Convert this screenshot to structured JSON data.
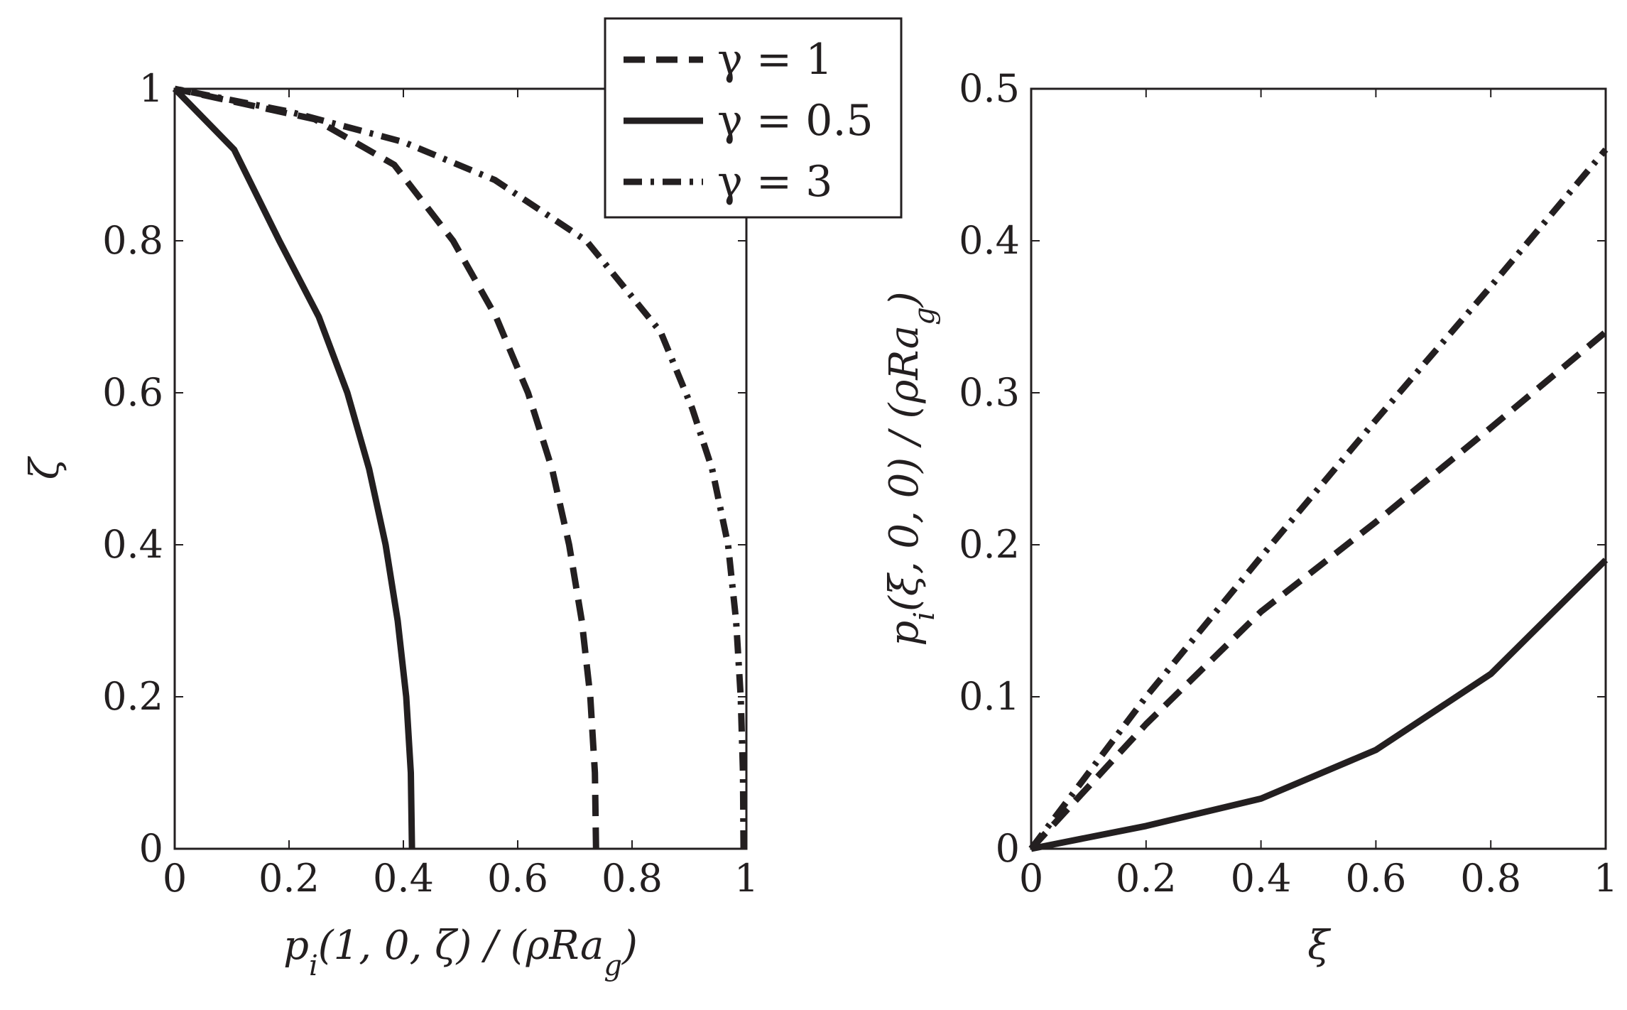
{
  "chart_data": [
    {
      "type": "line",
      "xlabel": "pᵢ(1, 0, ζ) / (ρRa_g)",
      "ylabel": "ζ",
      "xlim": [
        0,
        1
      ],
      "ylim": [
        0,
        1
      ],
      "xticks": [
        "0",
        "0.2",
        "0.4",
        "0.6",
        "0.8",
        "1"
      ],
      "yticks": [
        "0",
        "0.2",
        "0.4",
        "0.6",
        "0.8",
        "1"
      ],
      "grid": false,
      "legend": "top-right",
      "series": [
        {
          "name": "γ = 1",
          "style": "dashed",
          "x": [
            0.737,
            0.735,
            0.727,
            0.712,
            0.69,
            0.66,
            0.618,
            0.562,
            0.487,
            0.384,
            0.245,
            0.0
          ],
          "y": [
            0,
            0.1,
            0.2,
            0.3,
            0.4,
            0.5,
            0.6,
            0.7,
            0.8,
            0.9,
            0.96,
            1.0
          ]
        },
        {
          "name": "γ = 0.5",
          "style": "solid",
          "x": [
            0.415,
            0.413,
            0.405,
            0.39,
            0.369,
            0.34,
            0.302,
            0.252,
            0.183,
            0.104,
            0.0
          ],
          "y": [
            0,
            0.1,
            0.2,
            0.3,
            0.4,
            0.5,
            0.6,
            0.7,
            0.8,
            0.92,
            1.0
          ]
        },
        {
          "name": "γ = 3",
          "style": "dashdot",
          "x": [
            0.995,
            0.994,
            0.99,
            0.982,
            0.968,
            0.94,
            0.905,
            0.85,
            0.72,
            0.56,
            0.4,
            0.2,
            0.0
          ],
          "y": [
            0,
            0.1,
            0.2,
            0.3,
            0.4,
            0.5,
            0.58,
            0.68,
            0.8,
            0.88,
            0.93,
            0.97,
            1.0
          ]
        }
      ]
    },
    {
      "type": "line",
      "xlabel": "ξ",
      "ylabel": "pᵢ(ξ, 0, 0) / (ρRa_g)",
      "xlim": [
        0,
        1
      ],
      "ylim": [
        0,
        0.5
      ],
      "xticks": [
        "0",
        "0.2",
        "0.4",
        "0.6",
        "0.8",
        "1"
      ],
      "yticks": [
        "0",
        "0.1",
        "0.2",
        "0.3",
        "0.4",
        "0.5"
      ],
      "grid": false,
      "series": [
        {
          "name": "γ = 1",
          "style": "dashed",
          "x": [
            0,
            0.2,
            0.4,
            0.6,
            0.8,
            1.0
          ],
          "y": [
            0,
            0.082,
            0.156,
            0.215,
            0.277,
            0.34
          ]
        },
        {
          "name": "γ = 0.5",
          "style": "solid",
          "x": [
            0,
            0.2,
            0.4,
            0.6,
            0.8,
            1.0
          ],
          "y": [
            0,
            0.015,
            0.033,
            0.065,
            0.115,
            0.19
          ]
        },
        {
          "name": "γ = 3",
          "style": "dashdot",
          "x": [
            0,
            0.2,
            0.4,
            0.6,
            0.8,
            1.0
          ],
          "y": [
            0,
            0.1,
            0.192,
            0.282,
            0.37,
            0.46
          ]
        }
      ]
    }
  ]
}
